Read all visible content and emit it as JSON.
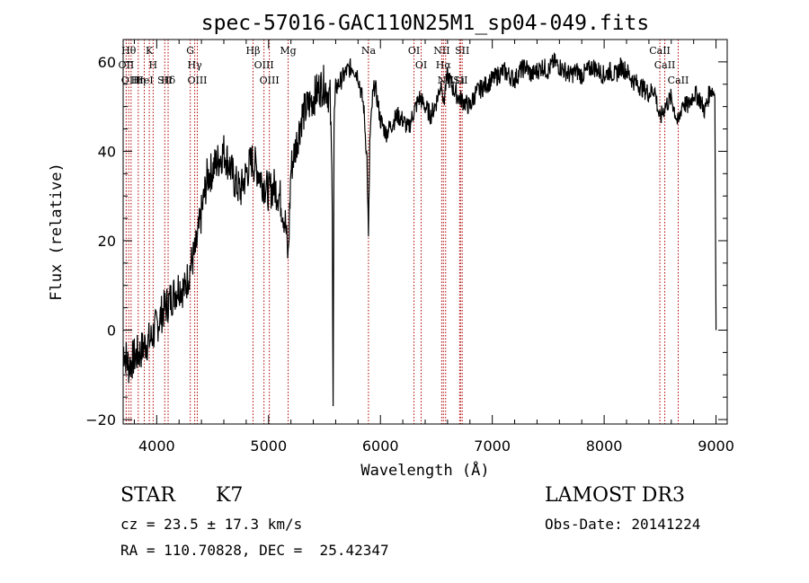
{
  "chart_data": {
    "type": "line",
    "title": "spec-57016-GAC110N25M1_sp04-049.fits",
    "xlabel": "Wavelength (Å)",
    "ylabel": "Flux (relative)",
    "xlim": [
      3700,
      9100
    ],
    "ylim": [
      -21,
      65
    ],
    "xticks": [
      4000,
      5000,
      6000,
      7000,
      8000,
      9000
    ],
    "yticks": [
      -20,
      0,
      20,
      40,
      60
    ],
    "xtick_labels": [
      "4000",
      "5000",
      "6000",
      "7000",
      "8000",
      "9000"
    ],
    "ytick_labels": [
      "−20",
      "0",
      "20",
      "40",
      "60"
    ],
    "series": [
      {
        "name": "flux",
        "x": [
          3700,
          3750,
          3800,
          3850,
          3900,
          3950,
          4000,
          4050,
          4100,
          4150,
          4200,
          4250,
          4300,
          4350,
          4400,
          4450,
          4500,
          4550,
          4600,
          4650,
          4700,
          4750,
          4800,
          4850,
          4900,
          4950,
          5000,
          5050,
          5100,
          5150,
          5175,
          5200,
          5250,
          5300,
          5350,
          5400,
          5450,
          5500,
          5550,
          5570,
          5577,
          5585,
          5600,
          5650,
          5700,
          5750,
          5800,
          5850,
          5880,
          5893,
          5905,
          5930,
          5950,
          6000,
          6050,
          6100,
          6150,
          6200,
          6250,
          6300,
          6350,
          6400,
          6450,
          6500,
          6550,
          6563,
          6580,
          6600,
          6650,
          6700,
          6750,
          6800,
          6850,
          6900,
          6950,
          7000,
          7050,
          7100,
          7150,
          7200,
          7250,
          7300,
          7350,
          7400,
          7450,
          7500,
          7550,
          7600,
          7650,
          7700,
          7750,
          7800,
          7850,
          7900,
          7950,
          8000,
          8050,
          8100,
          8150,
          8200,
          8250,
          8300,
          8350,
          8400,
          8450,
          8498,
          8542,
          8600,
          8662,
          8700,
          8750,
          8800,
          8850,
          8900,
          8950,
          8990,
          9000
        ],
        "y": [
          -4,
          -8,
          -6,
          -5,
          -3,
          -2,
          1,
          4,
          6,
          8,
          10,
          9,
          14,
          18,
          26,
          34,
          36,
          38,
          40,
          37,
          33,
          31,
          35,
          38,
          36,
          33,
          31,
          32,
          30,
          24,
          16,
          36,
          42,
          48,
          50,
          52,
          54,
          55,
          52,
          30,
          -17,
          45,
          54,
          56,
          58,
          59,
          57,
          50,
          38,
          20,
          42,
          52,
          55,
          47,
          44,
          46,
          48,
          47,
          45,
          49,
          52,
          50,
          48,
          51,
          56,
          50,
          54,
          57,
          54,
          52,
          51,
          50,
          53,
          54,
          55,
          56,
          57,
          58,
          57,
          56,
          58,
          59,
          57,
          58,
          59,
          58,
          60,
          59,
          58,
          57,
          58,
          57,
          58,
          59,
          58,
          57,
          58,
          57,
          59,
          58,
          56,
          55,
          54,
          53,
          54,
          47,
          50,
          52,
          46,
          51,
          50,
          53,
          52,
          49,
          54,
          53,
          0
        ]
      }
    ],
    "line_markers": [
      {
        "wl": 3750,
        "label": "Hθ"
      },
      {
        "wl": 3727,
        "label": "OII"
      },
      {
        "wl": 3771,
        "label": "OIII"
      },
      {
        "wl": 3835,
        "label": "Hη"
      },
      {
        "wl": 3889,
        "label": "HeI"
      },
      {
        "wl": 3934,
        "label": "K"
      },
      {
        "wl": 3968,
        "label": "H"
      },
      {
        "wl": 4072,
        "label": "SII"
      },
      {
        "wl": 4102,
        "label": "Hδ"
      },
      {
        "wl": 4300,
        "label": "G"
      },
      {
        "wl": 4340,
        "label": "Hγ"
      },
      {
        "wl": 4363,
        "label": "OIII"
      },
      {
        "wl": 4861,
        "label": "Hβ"
      },
      {
        "wl": 4959,
        "label": "OIII"
      },
      {
        "wl": 5007,
        "label": "OIII"
      },
      {
        "wl": 5175,
        "label": "Mg"
      },
      {
        "wl": 5893,
        "label": "Na"
      },
      {
        "wl": 6300,
        "label": "OI"
      },
      {
        "wl": 6364,
        "label": "OI"
      },
      {
        "wl": 6548,
        "label": "NII"
      },
      {
        "wl": 6563,
        "label": "Hα"
      },
      {
        "wl": 6583,
        "label": "NII"
      },
      {
        "wl": 6708,
        "label": "Li"
      },
      {
        "wl": 6716,
        "label": "SII"
      },
      {
        "wl": 6731,
        "label": "SII"
      },
      {
        "wl": 8498,
        "label": "CaII"
      },
      {
        "wl": 8542,
        "label": "CaII"
      },
      {
        "wl": 8662,
        "label": "CaII"
      }
    ]
  },
  "info": {
    "class": "STAR",
    "subclass": "K7",
    "cz": "cz = 23.5 ± 17.3 km/s",
    "coords": "RA = 110.70828, DEC =  25.42347",
    "survey": "LAMOST DR3",
    "obs_date": "Obs-Date: 20141224"
  },
  "colors": {
    "axes": "#000000",
    "spectrum": "#000000",
    "marker": "#b00000"
  }
}
